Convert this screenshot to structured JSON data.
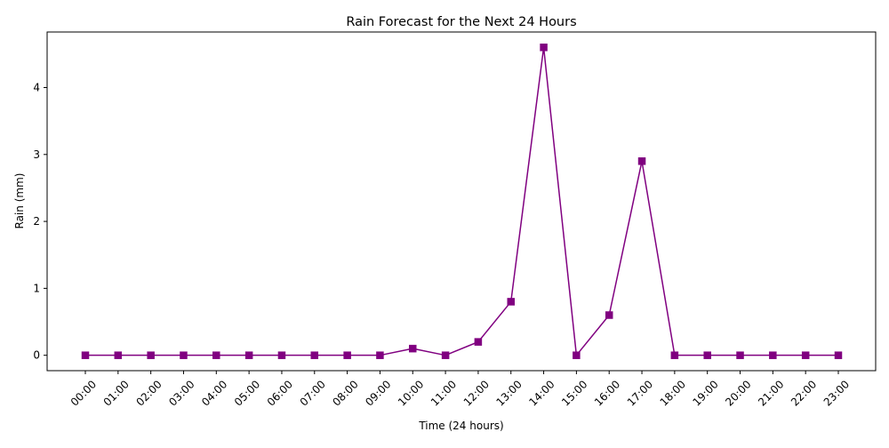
{
  "chart_data": {
    "type": "line",
    "title": "Rain Forecast for the Next 24 Hours",
    "xlabel": "Time (24 hours)",
    "ylabel": "Rain (mm)",
    "categories": [
      "00:00",
      "01:00",
      "02:00",
      "03:00",
      "04:00",
      "05:00",
      "06:00",
      "07:00",
      "08:00",
      "09:00",
      "10:00",
      "11:00",
      "12:00",
      "13:00",
      "14:00",
      "15:00",
      "16:00",
      "17:00",
      "18:00",
      "19:00",
      "20:00",
      "21:00",
      "22:00",
      "23:00"
    ],
    "series": [
      {
        "values": [
          0,
          0,
          0,
          0,
          0,
          0,
          0,
          0,
          0,
          0,
          0.1,
          0,
          0.2,
          0.8,
          4.6,
          0,
          0.6,
          2.9,
          0,
          0,
          0,
          0,
          0,
          0
        ],
        "color": "#800080",
        "marker": "square"
      }
    ],
    "ylim": [
      -0.23,
      4.83
    ],
    "yticks": [
      0,
      1,
      2,
      3,
      4
    ],
    "grid": false,
    "x_tick_rotation": "45"
  }
}
